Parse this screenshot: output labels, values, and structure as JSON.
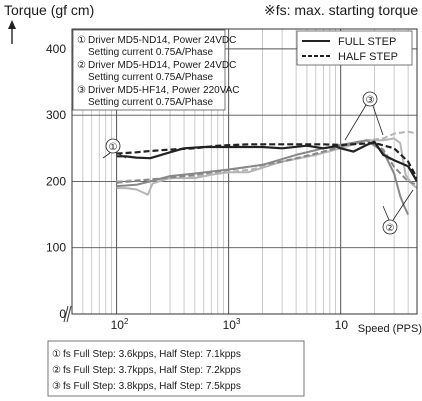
{
  "chart_data": {
    "type": "line",
    "y_label": "Torque (gf cm)",
    "x_label": "Speed (PPS)",
    "note": "※fs: max. starting torque",
    "x_scale": "log",
    "x_range_pps": [
      40,
      10000
    ],
    "y_range": [
      0,
      430
    ],
    "y_ticks": [
      0,
      100,
      200,
      300,
      400
    ],
    "x_tick_labels": [
      {
        "value": 100,
        "base": "10",
        "exp": "2"
      },
      {
        "value": 1000,
        "base": "10",
        "exp": "3"
      },
      {
        "value": 10000,
        "base": "10",
        "exp": ""
      }
    ],
    "grid": true,
    "driver_box": [
      {
        "num": "①",
        "line1": "Driver MD5-ND14, Power 24VDC",
        "line2": "Setting current 0.75A/Phase"
      },
      {
        "num": "②",
        "line1": "Driver MD5-HD14, Power 24VDC",
        "line2": "Setting current 0.75A/Phase"
      },
      {
        "num": "③",
        "line1": "Driver MD5-HF14, Power 220VAC",
        "line2": "Setting current 0.75A/Phase"
      }
    ],
    "legend": [
      {
        "label": "FULL STEP",
        "style": "solid"
      },
      {
        "label": "HALF STEP",
        "style": "dashed"
      }
    ],
    "series": [
      {
        "id": "1-full",
        "driver": "①",
        "style": "solid",
        "color": "#222222",
        "points": [
          [
            100,
            238
          ],
          [
            120,
            238
          ],
          [
            150,
            236
          ],
          [
            200,
            235
          ],
          [
            300,
            244
          ],
          [
            400,
            250
          ],
          [
            600,
            252
          ],
          [
            1000,
            252
          ],
          [
            2000,
            252
          ],
          [
            3000,
            250
          ],
          [
            5000,
            254
          ],
          [
            7000,
            250
          ],
          [
            9000,
            253
          ],
          [
            10000,
            250
          ]
        ]
      },
      {
        "id": "1-half",
        "driver": "①",
        "style": "dashed",
        "color": "#222222",
        "points": [
          [
            100,
            242
          ],
          [
            150,
            244
          ],
          [
            200,
            246
          ],
          [
            300,
            248
          ],
          [
            500,
            250
          ],
          [
            800,
            254
          ],
          [
            1500,
            256
          ],
          [
            3000,
            256
          ],
          [
            7000,
            256
          ],
          [
            10000,
            255
          ]
        ]
      },
      {
        "id": "2-full",
        "driver": "②",
        "style": "solid",
        "color": "#888888",
        "points": [
          [
            100,
            193
          ],
          [
            150,
            195
          ],
          [
            200,
            200
          ],
          [
            300,
            208
          ],
          [
            500,
            212
          ],
          [
            1000,
            218
          ],
          [
            2000,
            225
          ],
          [
            4000,
            240
          ],
          [
            7000,
            250
          ],
          [
            10000,
            255
          ]
        ]
      },
      {
        "id": "2-half",
        "driver": "②",
        "style": "dashed",
        "color": "#888888",
        "points": [
          [
            100,
            198
          ],
          [
            200,
            203
          ],
          [
            400,
            208
          ],
          [
            800,
            215
          ],
          [
            1500,
            222
          ],
          [
            3000,
            230
          ],
          [
            6000,
            242
          ],
          [
            10000,
            252
          ]
        ]
      },
      {
        "id": "3-full",
        "driver": "③",
        "style": "solid",
        "color": "#b5b5b5",
        "points": [
          [
            100,
            190
          ],
          [
            120,
            190
          ],
          [
            150,
            188
          ],
          [
            190,
            180
          ],
          [
            210,
            197
          ],
          [
            300,
            205
          ],
          [
            500,
            205
          ],
          [
            700,
            210
          ],
          [
            1000,
            214
          ],
          [
            1500,
            214
          ],
          [
            3000,
            230
          ],
          [
            6000,
            240
          ],
          [
            10000,
            250
          ]
        ]
      },
      {
        "id": "3-half",
        "driver": "③",
        "style": "dashed",
        "color": "#b5b5b5",
        "points": [
          [
            100,
            200
          ],
          [
            200,
            203
          ],
          [
            400,
            206
          ],
          [
            800,
            212
          ],
          [
            1600,
            218
          ],
          [
            3000,
            230
          ],
          [
            6000,
            240
          ],
          [
            10000,
            255
          ]
        ]
      }
    ],
    "stats": [
      {
        "num": "①",
        "text": "fs Full Step: 3.6kpps, Half Step: 7.1kpps"
      },
      {
        "num": "②",
        "text": "fs Full Step: 3.7kpps, Half Step: 7.2kpps"
      },
      {
        "num": "③",
        "text": "fs Full Step: 3.8kpps, Half Step: 7.5kpps"
      }
    ],
    "annotations": [
      "①",
      "②",
      "③"
    ]
  },
  "tail_series": [
    {
      "id": "1-full-tail",
      "style": "solid",
      "color": "#222222",
      "points": [
        [
          10000,
          250
        ],
        [
          13000,
          245
        ],
        [
          17000,
          255
        ],
        [
          20000,
          260
        ],
        [
          24000,
          240
        ],
        [
          30000,
          232
        ],
        [
          40000,
          223
        ],
        [
          48000,
          200
        ]
      ]
    },
    {
      "id": "1-half-tail",
      "style": "dashed",
      "color": "#222222",
      "points": [
        [
          10000,
          255
        ],
        [
          20000,
          258
        ],
        [
          30000,
          250
        ],
        [
          40000,
          230
        ],
        [
          48000,
          205
        ]
      ]
    },
    {
      "id": "2-full-tail",
      "style": "solid",
      "color": "#888888",
      "points": [
        [
          10000,
          255
        ],
        [
          17000,
          262
        ],
        [
          24000,
          245
        ],
        [
          30000,
          212
        ],
        [
          34000,
          178
        ],
        [
          37000,
          162
        ],
        [
          40000,
          150
        ]
      ]
    },
    {
      "id": "2-half-tail",
      "style": "dashed",
      "color": "#888888",
      "points": [
        [
          10000,
          252
        ],
        [
          17000,
          262
        ],
        [
          24000,
          248
        ],
        [
          30000,
          222
        ],
        [
          40000,
          200
        ],
        [
          48000,
          195
        ]
      ]
    },
    {
      "id": "3-full-tail",
      "style": "solid",
      "color": "#b5b5b5",
      "points": [
        [
          10000,
          250
        ],
        [
          17000,
          262
        ],
        [
          24000,
          262
        ],
        [
          30000,
          265
        ],
        [
          34000,
          258
        ],
        [
          38000,
          210
        ],
        [
          44000,
          195
        ],
        [
          48000,
          190
        ]
      ]
    },
    {
      "id": "3-half-tail",
      "style": "dashed",
      "color": "#b5b5b5",
      "points": [
        [
          10000,
          255
        ],
        [
          17000,
          262
        ],
        [
          24000,
          265
        ],
        [
          30000,
          272
        ],
        [
          40000,
          275
        ],
        [
          48000,
          272
        ]
      ]
    }
  ]
}
